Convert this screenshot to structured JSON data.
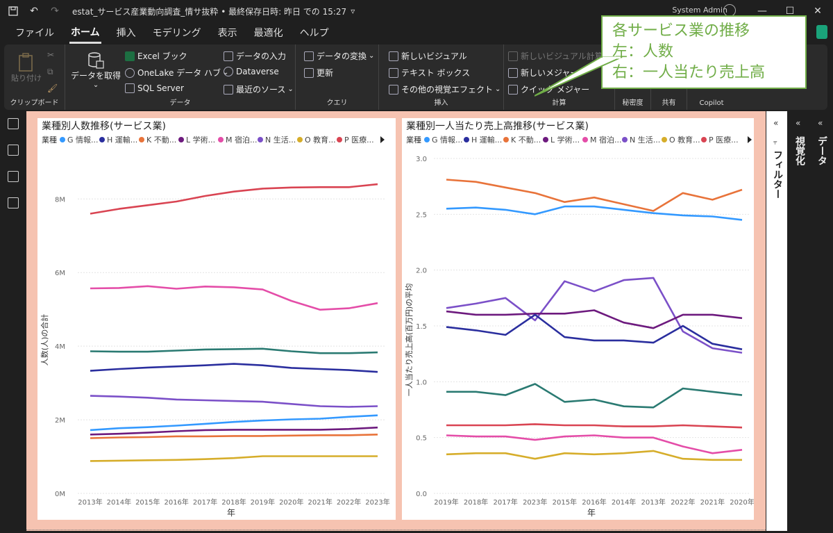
{
  "window": {
    "doc_title": "estat_サービス産業動向調査_情サ抜粋 • 最終保存日時: 昨日 での 15:27",
    "user": "System Admin",
    "save_icon": "save-icon",
    "undo_icon": "undo-icon",
    "redo_icon": "redo-icon"
  },
  "menu": {
    "items": [
      "ファイル",
      "ホーム",
      "挿入",
      "モデリング",
      "表示",
      "最適化",
      "ヘルプ"
    ],
    "active": "ホーム"
  },
  "ribbon": {
    "clipboard": {
      "paste": "貼り付け",
      "label": "クリップボード"
    },
    "data": {
      "get_data": "データを取得",
      "excel": "Excel ブック",
      "onelake": "OneLake データ ハブ",
      "sql": "SQL Server",
      "enter": "データの入力",
      "dataverse": "Dataverse",
      "recent": "最近のソース",
      "label": "データ"
    },
    "query": {
      "transform": "データの変換",
      "refresh": "更新",
      "label": "クエリ"
    },
    "insert": {
      "new_visual": "新しいビジュアル",
      "textbox": "テキスト ボックス",
      "more_visuals": "その他の視覚エフェクト",
      "label": "挿入"
    },
    "calc": {
      "new_visual_calc": "新しいビジュアル計算",
      "new_measure": "新しいメジャー",
      "quick_measure": "クイック メジャー",
      "label": "計算"
    },
    "sensitivity": {
      "label": "秘密度"
    },
    "share": {
      "label": "共有"
    },
    "copilot": {
      "label": "Copilot"
    }
  },
  "callout": {
    "line1": "各サービス業の推移",
    "line2": "左：人数",
    "line3": "右：一人当たり売上高"
  },
  "panes": {
    "filter": "フィルター",
    "visualize": "視覚化",
    "data": "データ"
  },
  "legend_title": "業種",
  "legend_items": [
    "G 情報...",
    "H 運輸...",
    "K 不動...",
    "L 学術...",
    "M 宿泊...",
    "N 生活...",
    "O 教育...",
    "P 医療..."
  ],
  "colors": {
    "G": "#3399ff",
    "H": "#2a2e9e",
    "K": "#e8733a",
    "L": "#6d1a7e",
    "M": "#e44da8",
    "N": "#7b50c8",
    "O": "#d6ad2a",
    "P": "#d94452",
    "teal": "#2a7a72"
  },
  "chart_data": [
    {
      "type": "line",
      "title": "業種別人数推移(サービス業)",
      "xlabel": "年",
      "ylabel": "人数(人)の合計",
      "categories": [
        "2013年",
        "2014年",
        "2015年",
        "2016年",
        "2017年",
        "2018年",
        "2019年",
        "2020年",
        "2021年",
        "2022年",
        "2023年"
      ],
      "yticks": [
        "0M",
        "2M",
        "4M",
        "6M",
        "8M"
      ],
      "ylim": [
        0,
        9.1
      ],
      "series": [
        {
          "key": "P",
          "values": [
            7.6,
            7.73,
            7.83,
            7.93,
            8.08,
            8.2,
            8.28,
            8.31,
            8.32,
            8.32,
            8.4
          ]
        },
        {
          "key": "M",
          "values": [
            5.57,
            5.58,
            5.63,
            5.56,
            5.62,
            5.6,
            5.54,
            5.23,
            4.99,
            5.03,
            5.17
          ]
        },
        {
          "key": "teal",
          "values": [
            3.86,
            3.85,
            3.85,
            3.88,
            3.91,
            3.92,
            3.93,
            3.86,
            3.81,
            3.81,
            3.83
          ]
        },
        {
          "key": "H",
          "values": [
            3.33,
            3.38,
            3.42,
            3.45,
            3.48,
            3.52,
            3.48,
            3.41,
            3.38,
            3.35,
            3.3
          ]
        },
        {
          "key": "N",
          "values": [
            2.65,
            2.63,
            2.6,
            2.55,
            2.53,
            2.51,
            2.49,
            2.43,
            2.37,
            2.35,
            2.37
          ]
        },
        {
          "key": "G",
          "values": [
            1.72,
            1.77,
            1.8,
            1.84,
            1.89,
            1.94,
            1.98,
            2.01,
            2.03,
            2.08,
            2.12
          ]
        },
        {
          "key": "L",
          "values": [
            1.6,
            1.62,
            1.65,
            1.69,
            1.72,
            1.73,
            1.73,
            1.73,
            1.73,
            1.75,
            1.79
          ]
        },
        {
          "key": "K",
          "values": [
            1.5,
            1.52,
            1.53,
            1.55,
            1.55,
            1.56,
            1.56,
            1.57,
            1.58,
            1.58,
            1.6
          ]
        },
        {
          "key": "O",
          "values": [
            0.88,
            0.89,
            0.9,
            0.91,
            0.93,
            0.96,
            1.01,
            1.01,
            1.01,
            1.01,
            1.01
          ]
        }
      ]
    },
    {
      "type": "line",
      "title": "業種別一人当たり売上高推移(サービス業)",
      "xlabel": "年",
      "ylabel": "一人当たり売上高(百万円)の平均",
      "categories": [
        "2019年",
        "2018年",
        "2017年",
        "2023年",
        "2015年",
        "2016年",
        "2014年",
        "2013年",
        "2022年",
        "2021年",
        "2020年"
      ],
      "yticks": [
        "0.0",
        "0.5",
        "1.0",
        "1.5",
        "2.0",
        "2.5",
        "3.0"
      ],
      "ylim": [
        0,
        3.0
      ],
      "series": [
        {
          "key": "K",
          "values": [
            2.81,
            2.79,
            2.74,
            2.69,
            2.61,
            2.65,
            2.59,
            2.53,
            2.69,
            2.63,
            2.72
          ]
        },
        {
          "key": "G",
          "values": [
            2.55,
            2.56,
            2.54,
            2.5,
            2.57,
            2.57,
            2.54,
            2.51,
            2.49,
            2.48,
            2.45
          ]
        },
        {
          "key": "N",
          "values": [
            1.66,
            1.7,
            1.75,
            1.55,
            1.9,
            1.81,
            1.91,
            1.93,
            1.45,
            1.3,
            1.26
          ]
        },
        {
          "key": "L",
          "values": [
            1.63,
            1.6,
            1.6,
            1.61,
            1.61,
            1.64,
            1.53,
            1.48,
            1.6,
            1.6,
            1.57
          ]
        },
        {
          "key": "H",
          "values": [
            1.49,
            1.46,
            1.42,
            1.6,
            1.4,
            1.37,
            1.37,
            1.35,
            1.5,
            1.34,
            1.29
          ]
        },
        {
          "key": "teal",
          "values": [
            0.91,
            0.91,
            0.88,
            0.98,
            0.82,
            0.84,
            0.78,
            0.77,
            0.94,
            0.91,
            0.88
          ]
        },
        {
          "key": "P",
          "values": [
            0.61,
            0.61,
            0.61,
            0.62,
            0.61,
            0.61,
            0.6,
            0.6,
            0.61,
            0.6,
            0.59
          ]
        },
        {
          "key": "M",
          "values": [
            0.52,
            0.51,
            0.51,
            0.48,
            0.51,
            0.52,
            0.5,
            0.5,
            0.42,
            0.36,
            0.39
          ]
        },
        {
          "key": "O",
          "values": [
            0.35,
            0.36,
            0.36,
            0.31,
            0.36,
            0.35,
            0.36,
            0.38,
            0.31,
            0.3,
            0.3
          ]
        }
      ]
    }
  ]
}
